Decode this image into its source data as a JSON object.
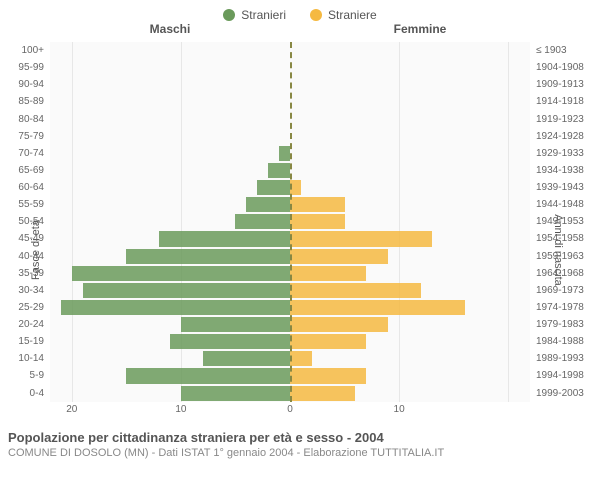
{
  "chart": {
    "type": "population-pyramid",
    "legend": {
      "male": {
        "label": "Stranieri",
        "color": "#6a9a5b"
      },
      "female": {
        "label": "Straniere",
        "color": "#f5b941"
      }
    },
    "column_headers": {
      "left": "Maschi",
      "right": "Femmine"
    },
    "y_axis_left_title": "Fasce di età",
    "y_axis_right_title": "Anni di nascita",
    "x_max": 22,
    "x_ticks": [
      20,
      10,
      0,
      10
    ],
    "background_color": "#fafafa",
    "grid_color": "#e7e7e7",
    "centerline_color": "#888844",
    "label_fontsize": 10,
    "legend_fontsize": 12,
    "rows": [
      {
        "age": "100+",
        "birth": "≤ 1903",
        "male": 0,
        "female": 0
      },
      {
        "age": "95-99",
        "birth": "1904-1908",
        "male": 0,
        "female": 0
      },
      {
        "age": "90-94",
        "birth": "1909-1913",
        "male": 0,
        "female": 0
      },
      {
        "age": "85-89",
        "birth": "1914-1918",
        "male": 0,
        "female": 0
      },
      {
        "age": "80-84",
        "birth": "1919-1923",
        "male": 0,
        "female": 0
      },
      {
        "age": "75-79",
        "birth": "1924-1928",
        "male": 0,
        "female": 0
      },
      {
        "age": "70-74",
        "birth": "1929-1933",
        "male": 1,
        "female": 0
      },
      {
        "age": "65-69",
        "birth": "1934-1938",
        "male": 2,
        "female": 0
      },
      {
        "age": "60-64",
        "birth": "1939-1943",
        "male": 3,
        "female": 1
      },
      {
        "age": "55-59",
        "birth": "1944-1948",
        "male": 4,
        "female": 5
      },
      {
        "age": "50-54",
        "birth": "1949-1953",
        "male": 5,
        "female": 5
      },
      {
        "age": "45-49",
        "birth": "1954-1958",
        "male": 12,
        "female": 13
      },
      {
        "age": "40-44",
        "birth": "1959-1963",
        "male": 15,
        "female": 9
      },
      {
        "age": "35-39",
        "birth": "1964-1968",
        "male": 20,
        "female": 7
      },
      {
        "age": "30-34",
        "birth": "1969-1973",
        "male": 19,
        "female": 12
      },
      {
        "age": "25-29",
        "birth": "1974-1978",
        "male": 21,
        "female": 16
      },
      {
        "age": "20-24",
        "birth": "1979-1983",
        "male": 10,
        "female": 9
      },
      {
        "age": "15-19",
        "birth": "1984-1988",
        "male": 11,
        "female": 7
      },
      {
        "age": "10-14",
        "birth": "1989-1993",
        "male": 8,
        "female": 2
      },
      {
        "age": "5-9",
        "birth": "1994-1998",
        "male": 15,
        "female": 7
      },
      {
        "age": "0-4",
        "birth": "1999-2003",
        "male": 10,
        "female": 6
      }
    ]
  },
  "footer": {
    "title": "Popolazione per cittadinanza straniera per età e sesso - 2004",
    "subtitle": "COMUNE DI DOSOLO (MN) - Dati ISTAT 1° gennaio 2004 - Elaborazione TUTTITALIA.IT"
  }
}
